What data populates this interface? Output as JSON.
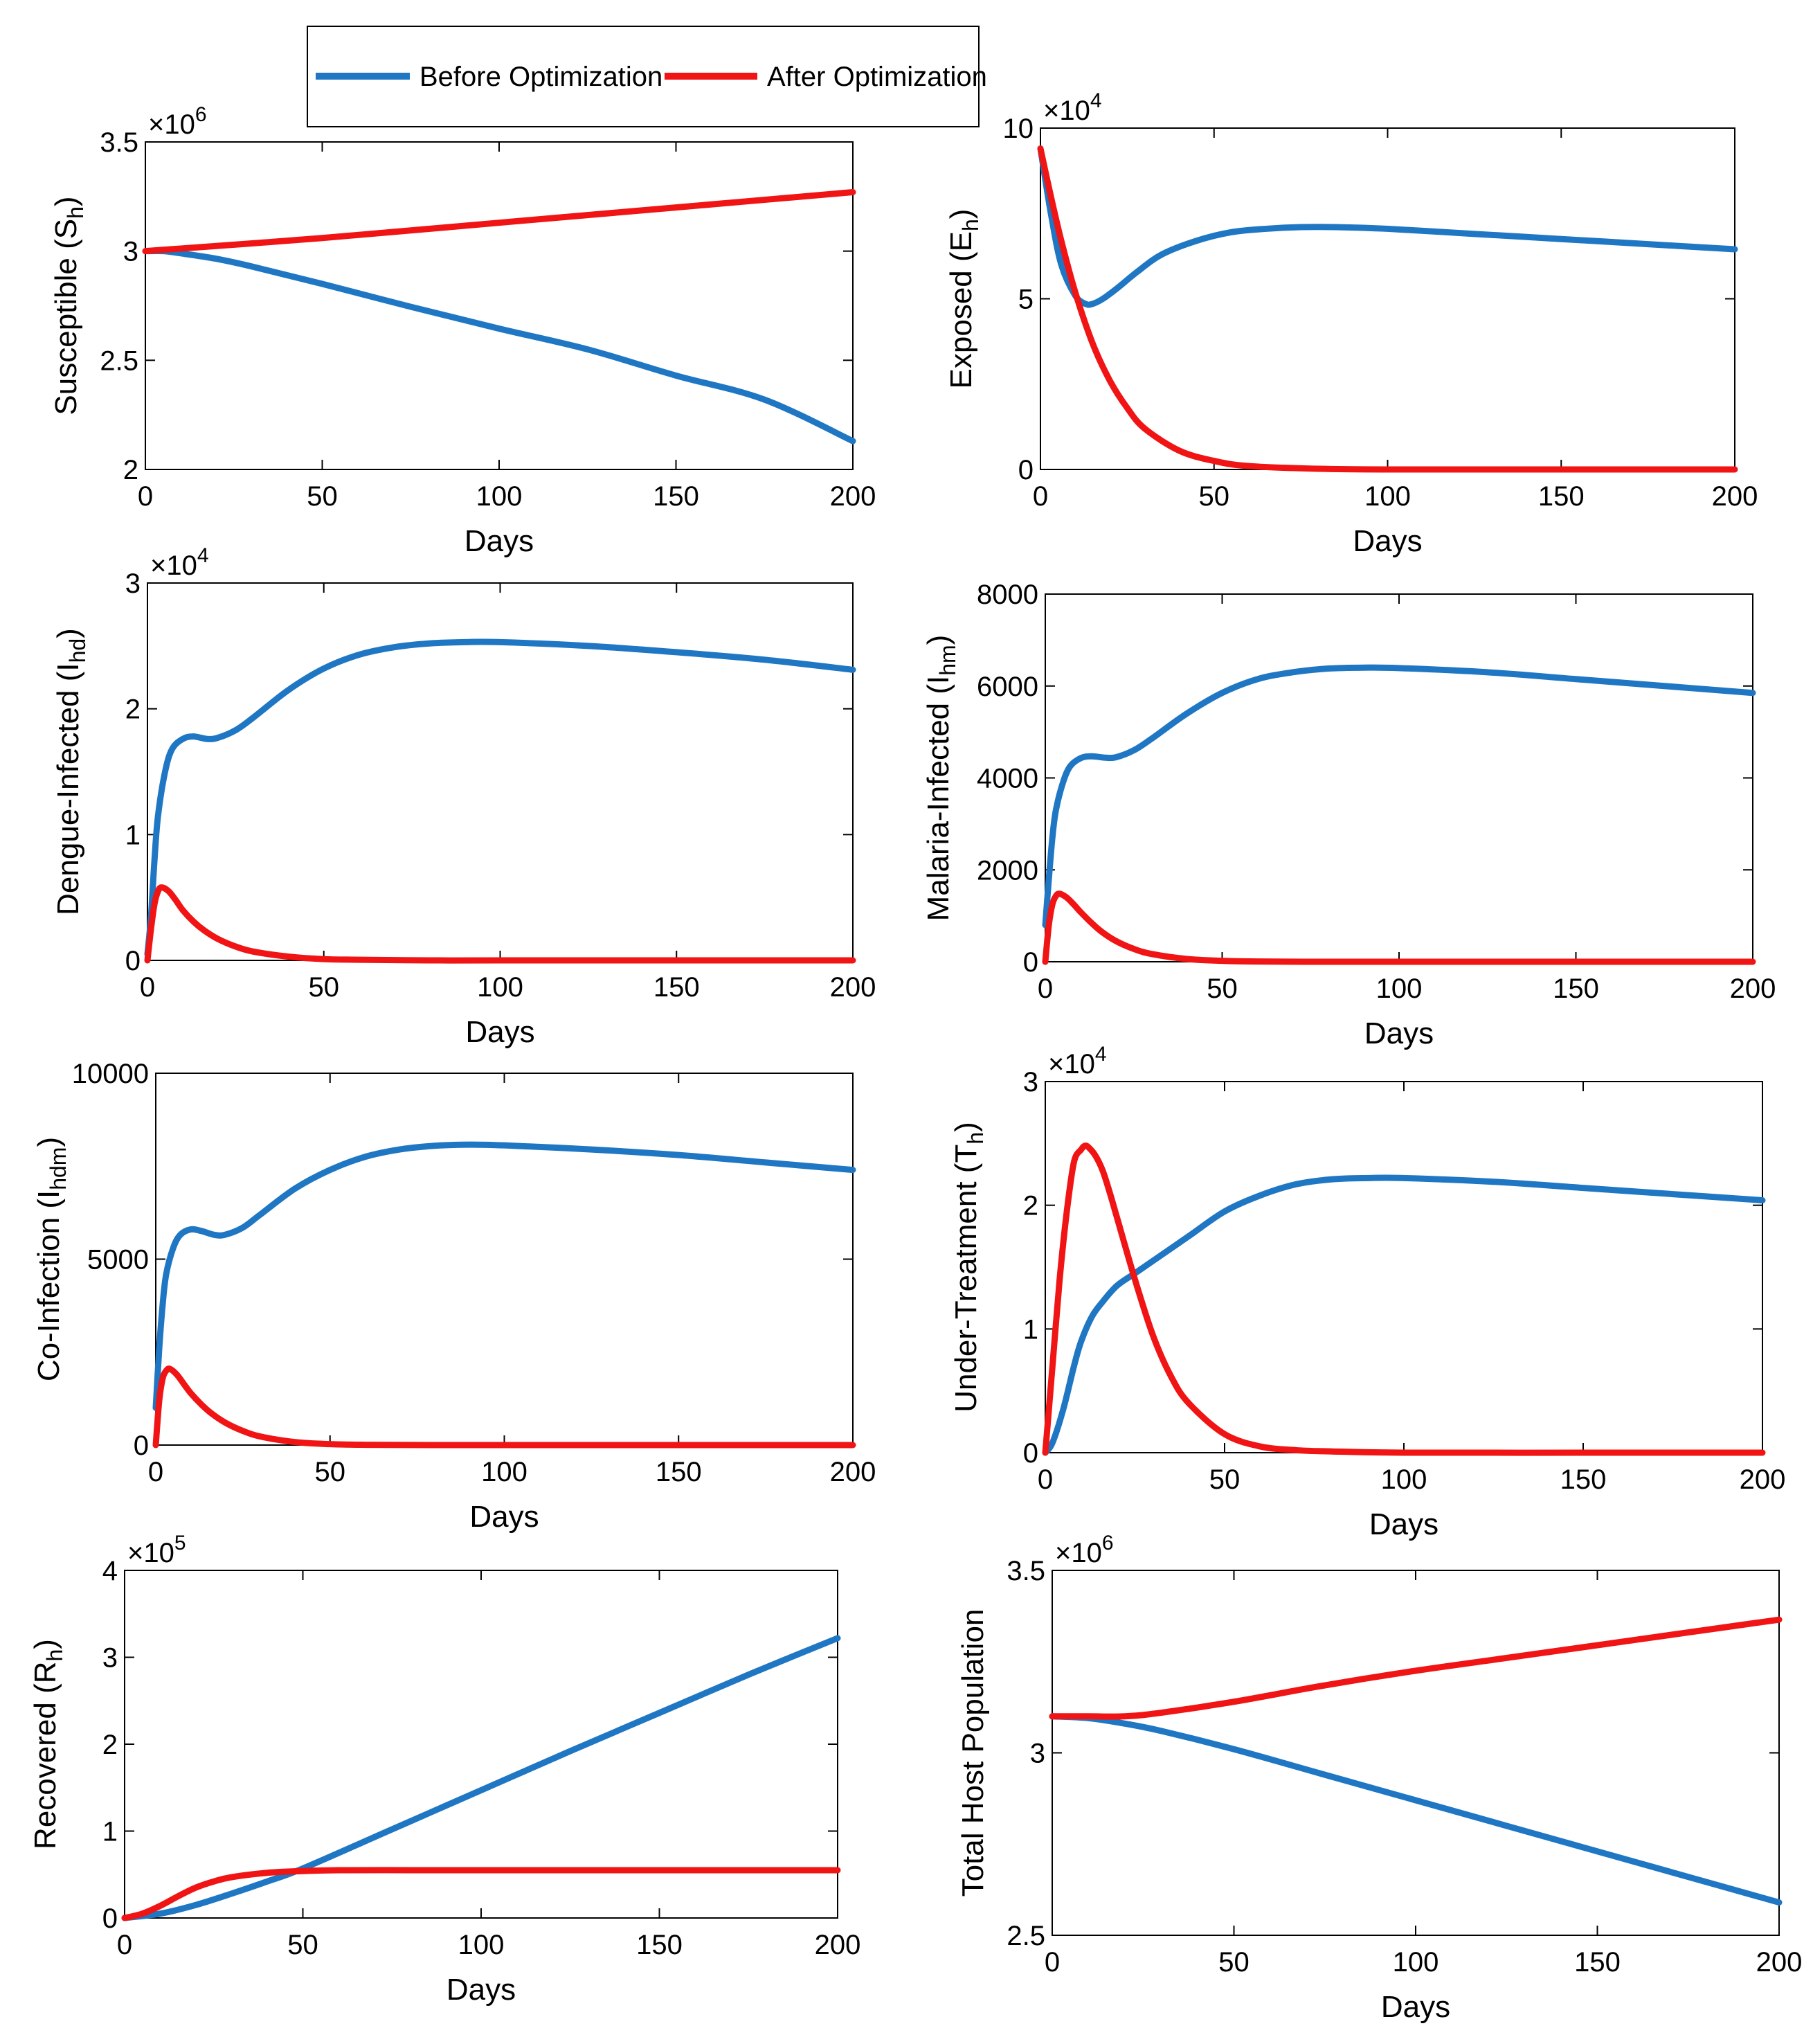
{
  "legend": {
    "items": [
      {
        "label": "Before Optimization",
        "color": "#1f77c4"
      },
      {
        "label": "After Optimization",
        "color": "#f01414"
      }
    ]
  },
  "chart_data": [
    {
      "id": "susceptible",
      "type": "line",
      "title": "",
      "xlabel": "Days",
      "ylabel_main": "Susceptible (S",
      "ylabel_sub": "h",
      "ylabel_tail": ")",
      "multiplier_text": "×10",
      "multiplier_exp": "6",
      "xlim": [
        0,
        200
      ],
      "ylim": [
        2,
        3.5
      ],
      "xticks": [
        0,
        50,
        100,
        150,
        200
      ],
      "xtick_labels": [
        "0",
        "50",
        "100",
        "150",
        "200"
      ],
      "yticks": [
        2,
        2.5,
        3,
        3.5
      ],
      "ytick_labels": [
        "2",
        "2.5",
        "3",
        "3.5"
      ],
      "series": [
        {
          "name": "Before Optimization",
          "color": "#1f77c4",
          "x": [
            0,
            5,
            10,
            20,
            30,
            50,
            75,
            100,
            125,
            150,
            175,
            200
          ],
          "y": [
            3.0,
            3.0,
            2.99,
            2.965,
            2.93,
            2.85,
            2.745,
            2.645,
            2.55,
            2.43,
            2.32,
            2.13
          ]
        },
        {
          "name": "After Optimization",
          "color": "#f01414",
          "x": [
            0,
            50,
            100,
            150,
            200
          ],
          "y": [
            3.0,
            3.06,
            3.13,
            3.2,
            3.27
          ]
        }
      ]
    },
    {
      "id": "exposed",
      "type": "line",
      "title": "",
      "xlabel": "Days",
      "ylabel_main": "Exposed (E",
      "ylabel_sub": "h",
      "ylabel_tail": ")",
      "multiplier_text": "×10",
      "multiplier_exp": "4",
      "xlim": [
        0,
        200
      ],
      "ylim": [
        0,
        10
      ],
      "xticks": [
        0,
        50,
        100,
        150,
        200
      ],
      "xtick_labels": [
        "0",
        "50",
        "100",
        "150",
        "200"
      ],
      "yticks": [
        0,
        5,
        10
      ],
      "ytick_labels": [
        "0",
        "5",
        "10"
      ],
      "series": [
        {
          "name": "Before Optimization",
          "color": "#1f77c4",
          "x": [
            0,
            3,
            6,
            10,
            13,
            15,
            18,
            22,
            28,
            35,
            45,
            55,
            65,
            75,
            85,
            100,
            125,
            150,
            175,
            200
          ],
          "y": [
            9.4,
            7.5,
            6.0,
            5.1,
            4.85,
            4.85,
            5.0,
            5.3,
            5.8,
            6.3,
            6.7,
            6.95,
            7.05,
            7.1,
            7.1,
            7.05,
            6.9,
            6.75,
            6.6,
            6.45
          ]
        },
        {
          "name": "After Optimization",
          "color": "#f01414",
          "x": [
            0,
            3,
            6,
            10,
            15,
            20,
            25,
            30,
            40,
            50,
            60,
            80,
            100,
            150,
            200
          ],
          "y": [
            9.4,
            8.0,
            6.7,
            5.2,
            3.7,
            2.6,
            1.8,
            1.2,
            0.55,
            0.25,
            0.1,
            0.02,
            0.0,
            0.0,
            0.0
          ]
        }
      ]
    },
    {
      "id": "dengue",
      "type": "line",
      "title": "",
      "xlabel": "Days",
      "ylabel_main": "Dengue-Infected (I",
      "ylabel_sub": "hd",
      "ylabel_tail": ")",
      "multiplier_text": "×10",
      "multiplier_exp": "4",
      "xlim": [
        0,
        200
      ],
      "ylim": [
        0,
        3
      ],
      "xticks": [
        0,
        50,
        100,
        150,
        200
      ],
      "xtick_labels": [
        "0",
        "50",
        "100",
        "150",
        "200"
      ],
      "yticks": [
        0,
        1,
        2,
        3
      ],
      "ytick_labels": [
        "0",
        "1",
        "2",
        "3"
      ],
      "series": [
        {
          "name": "Before Optimization",
          "color": "#1f77c4",
          "x": [
            0,
            1,
            2,
            3,
            5,
            7,
            10,
            13,
            17,
            20,
            25,
            30,
            40,
            50,
            60,
            70,
            80,
            90,
            100,
            125,
            150,
            175,
            200
          ],
          "y": [
            0.05,
            0.35,
            0.8,
            1.15,
            1.5,
            1.68,
            1.76,
            1.78,
            1.76,
            1.77,
            1.83,
            1.93,
            2.15,
            2.32,
            2.43,
            2.49,
            2.52,
            2.53,
            2.53,
            2.5,
            2.45,
            2.39,
            2.31
          ]
        },
        {
          "name": "After Optimization",
          "color": "#f01414",
          "x": [
            0,
            1,
            2,
            3,
            4,
            6,
            8,
            10,
            13,
            16,
            20,
            25,
            30,
            40,
            50,
            60,
            80,
            100,
            150,
            200
          ],
          "y": [
            0.0,
            0.25,
            0.45,
            0.55,
            0.58,
            0.55,
            0.48,
            0.4,
            0.31,
            0.24,
            0.17,
            0.11,
            0.07,
            0.03,
            0.01,
            0.005,
            0.0,
            0.0,
            0.0,
            0.0
          ]
        }
      ]
    },
    {
      "id": "malaria",
      "type": "line",
      "title": "",
      "xlabel": "Days",
      "ylabel_main": "Malaria-Infected (I",
      "ylabel_sub": "hm",
      "ylabel_tail": ")",
      "multiplier_text": "",
      "multiplier_exp": "",
      "xlim": [
        0,
        200
      ],
      "ylim": [
        0,
        8000
      ],
      "xticks": [
        0,
        50,
        100,
        150,
        200
      ],
      "xtick_labels": [
        "0",
        "50",
        "100",
        "150",
        "200"
      ],
      "yticks": [
        0,
        2000,
        4000,
        6000,
        8000
      ],
      "ytick_labels": [
        "0",
        "2000",
        "4000",
        "6000",
        "8000"
      ],
      "series": [
        {
          "name": "Before Optimization",
          "color": "#1f77c4",
          "x": [
            0,
            1,
            2,
            3,
            5,
            7,
            10,
            13,
            17,
            20,
            25,
            30,
            40,
            50,
            60,
            70,
            80,
            90,
            100,
            125,
            150,
            175,
            200
          ],
          "y": [
            800,
            1800,
            2700,
            3300,
            3900,
            4250,
            4430,
            4470,
            4440,
            4450,
            4600,
            4850,
            5400,
            5850,
            6150,
            6300,
            6380,
            6400,
            6390,
            6300,
            6150,
            6000,
            5850
          ]
        },
        {
          "name": "After Optimization",
          "color": "#f01414",
          "x": [
            0,
            1,
            2,
            3,
            4,
            6,
            8,
            10,
            13,
            16,
            20,
            25,
            30,
            40,
            50,
            60,
            80,
            100,
            150,
            200
          ],
          "y": [
            0,
            800,
            1250,
            1430,
            1480,
            1400,
            1250,
            1080,
            850,
            650,
            450,
            280,
            170,
            60,
            20,
            5,
            0,
            0,
            0,
            0
          ]
        }
      ]
    },
    {
      "id": "coinfection",
      "type": "line",
      "title": "",
      "xlabel": "Days",
      "ylabel_main": "Co-Infection (I",
      "ylabel_sub": "hdm",
      "ylabel_tail": ")",
      "multiplier_text": "",
      "multiplier_exp": "",
      "xlim": [
        0,
        200
      ],
      "ylim": [
        0,
        10000
      ],
      "xticks": [
        0,
        50,
        100,
        150,
        200
      ],
      "xtick_labels": [
        "0",
        "50",
        "100",
        "150",
        "200"
      ],
      "yticks": [
        0,
        5000,
        10000
      ],
      "ytick_labels": [
        "0",
        "5000",
        "10000"
      ],
      "series": [
        {
          "name": "Before Optimization",
          "color": "#1f77c4",
          "x": [
            0,
            1,
            2,
            3,
            5,
            7,
            10,
            13,
            17,
            20,
            25,
            30,
            40,
            50,
            60,
            70,
            80,
            90,
            100,
            125,
            150,
            175,
            200
          ],
          "y": [
            1000,
            2600,
            3800,
            4600,
            5300,
            5650,
            5800,
            5760,
            5650,
            5660,
            5850,
            6200,
            6900,
            7400,
            7750,
            7950,
            8050,
            8080,
            8060,
            7950,
            7800,
            7600,
            7400
          ]
        },
        {
          "name": "After Optimization",
          "color": "#f01414",
          "x": [
            0,
            1,
            2,
            3,
            4,
            6,
            8,
            10,
            13,
            16,
            20,
            25,
            30,
            40,
            50,
            60,
            80,
            100,
            150,
            200
          ],
          "y": [
            0,
            1200,
            1800,
            2000,
            2050,
            1900,
            1650,
            1400,
            1100,
            850,
            600,
            380,
            230,
            80,
            25,
            8,
            0,
            0,
            0,
            0
          ]
        }
      ]
    },
    {
      "id": "treatment",
      "type": "line",
      "title": "",
      "xlabel": "Days",
      "ylabel_main": "Under-Treatment (T",
      "ylabel_sub": "h",
      "ylabel_tail": ")",
      "multiplier_text": "×10",
      "multiplier_exp": "4",
      "xlim": [
        0,
        200
      ],
      "ylim": [
        0,
        3
      ],
      "xticks": [
        0,
        50,
        100,
        150,
        200
      ],
      "xtick_labels": [
        "0",
        "50",
        "100",
        "150",
        "200"
      ],
      "yticks": [
        0,
        1,
        2,
        3
      ],
      "ytick_labels": [
        "0",
        "1",
        "2",
        "3"
      ],
      "series": [
        {
          "name": "Before Optimization",
          "color": "#1f77c4",
          "x": [
            0,
            2,
            5,
            8,
            10,
            13,
            16,
            20,
            25,
            30,
            40,
            50,
            60,
            70,
            80,
            90,
            100,
            125,
            150,
            175,
            200
          ],
          "y": [
            0.0,
            0.08,
            0.35,
            0.7,
            0.9,
            1.1,
            1.22,
            1.35,
            1.45,
            1.55,
            1.75,
            1.95,
            2.08,
            2.17,
            2.21,
            2.22,
            2.22,
            2.19,
            2.14,
            2.09,
            2.04
          ]
        },
        {
          "name": "After Optimization",
          "color": "#f01414",
          "x": [
            0,
            2,
            4,
            6,
            8,
            10,
            11,
            12,
            14,
            16,
            18,
            20,
            25,
            30,
            35,
            40,
            50,
            60,
            70,
            80,
            100,
            150,
            200
          ],
          "y": [
            0.0,
            0.7,
            1.4,
            1.95,
            2.35,
            2.45,
            2.48,
            2.47,
            2.4,
            2.28,
            2.1,
            1.9,
            1.4,
            0.95,
            0.62,
            0.4,
            0.15,
            0.05,
            0.02,
            0.01,
            0.0,
            0.0,
            0.0
          ]
        }
      ]
    },
    {
      "id": "recovered",
      "type": "line",
      "title": "",
      "xlabel": "Days",
      "ylabel_main": "Recovered (R",
      "ylabel_sub": "h",
      "ylabel_tail": ")",
      "multiplier_text": "×10",
      "multiplier_exp": "5",
      "xlim": [
        0,
        200
      ],
      "ylim": [
        0,
        4
      ],
      "xticks": [
        0,
        50,
        100,
        150,
        200
      ],
      "xtick_labels": [
        "0",
        "50",
        "100",
        "150",
        "200"
      ],
      "yticks": [
        0,
        1,
        2,
        3,
        4
      ],
      "ytick_labels": [
        "0",
        "1",
        "2",
        "3",
        "4"
      ],
      "series": [
        {
          "name": "Before Optimization",
          "color": "#1f77c4",
          "x": [
            0,
            10,
            20,
            30,
            40,
            50,
            75,
            100,
            125,
            150,
            175,
            200
          ],
          "y": [
            0.0,
            0.05,
            0.15,
            0.28,
            0.42,
            0.57,
            1.02,
            1.47,
            1.92,
            2.36,
            2.8,
            3.22
          ]
        },
        {
          "name": "After Optimization",
          "color": "#f01414",
          "x": [
            0,
            5,
            10,
            15,
            20,
            25,
            30,
            40,
            50,
            60,
            80,
            100,
            150,
            200
          ],
          "y": [
            0.0,
            0.05,
            0.14,
            0.25,
            0.35,
            0.42,
            0.47,
            0.52,
            0.54,
            0.55,
            0.55,
            0.55,
            0.55,
            0.55
          ]
        }
      ]
    },
    {
      "id": "total",
      "type": "line",
      "title": "",
      "xlabel": "Days",
      "ylabel_main": "Total Host Population",
      "ylabel_sub": "",
      "ylabel_tail": "",
      "multiplier_text": "×10",
      "multiplier_exp": "6",
      "xlim": [
        0,
        200
      ],
      "ylim": [
        2.5,
        3.5
      ],
      "xticks": [
        0,
        50,
        100,
        150,
        200
      ],
      "xtick_labels": [
        "0",
        "50",
        "100",
        "150",
        "200"
      ],
      "yticks": [
        2.5,
        3,
        3.5
      ],
      "ytick_labels": [
        "2.5",
        "3",
        "3.5"
      ],
      "series": [
        {
          "name": "Before Optimization",
          "color": "#1f77c4",
          "x": [
            0,
            10,
            20,
            30,
            50,
            75,
            100,
            125,
            150,
            175,
            200
          ],
          "y": [
            3.1,
            3.095,
            3.08,
            3.06,
            3.01,
            2.94,
            2.87,
            2.8,
            2.73,
            2.66,
            2.59
          ]
        },
        {
          "name": "After Optimization",
          "color": "#f01414",
          "x": [
            0,
            10,
            20,
            30,
            50,
            75,
            100,
            125,
            150,
            175,
            200
          ],
          "y": [
            3.1,
            3.1,
            3.1,
            3.11,
            3.14,
            3.185,
            3.225,
            3.26,
            3.295,
            3.33,
            3.365
          ]
        }
      ]
    }
  ]
}
